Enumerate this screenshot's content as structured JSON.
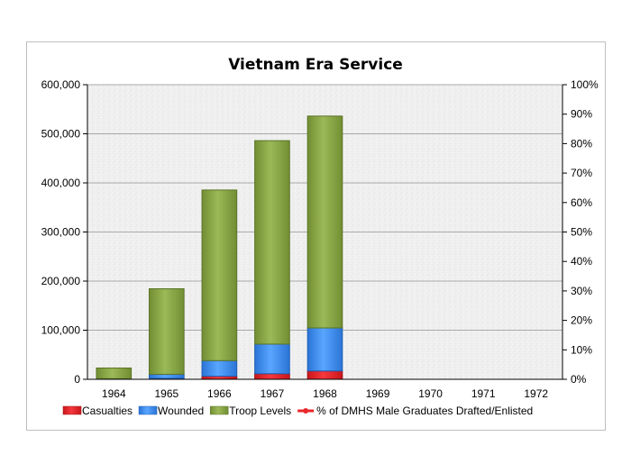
{
  "chart_data": {
    "type": "bar",
    "stacked": true,
    "title": "Vietnam Era Service",
    "categories": [
      "1964",
      "1965",
      "1966",
      "1967",
      "1968",
      "1969",
      "1970",
      "1971",
      "1972"
    ],
    "series": [
      {
        "name": "Casualties",
        "color": "#e8262b",
        "values": [
          200,
          1900,
          6300,
          11400,
          17000,
          null,
          null,
          null,
          null
        ]
      },
      {
        "name": "Wounded",
        "color": "#3d8ef0",
        "values": [
          1000,
          8300,
          31700,
          60300,
          87600,
          null,
          null,
          null,
          null
        ]
      },
      {
        "name": "Troop Levels",
        "color": "#8aa745",
        "values": [
          21800,
          174200,
          347500,
          414300,
          431500,
          null,
          null,
          null,
          null
        ]
      },
      {
        "name": "% of DMHS Male Graduates Drafted/Enlisted",
        "color": "#e8262b",
        "axis": "right",
        "type": "line",
        "values": [
          null,
          null,
          null,
          null,
          null,
          null,
          null,
          null,
          null
        ]
      }
    ],
    "y_left": {
      "min": 0,
      "max": 600000,
      "ticks": [
        "0",
        "100,000",
        "200,000",
        "300,000",
        "400,000",
        "500,000",
        "600,000"
      ]
    },
    "y_right": {
      "min": 0,
      "max": 100,
      "ticks": [
        "0%",
        "10%",
        "20%",
        "30%",
        "40%",
        "50%",
        "60%",
        "70%",
        "80%",
        "90%",
        "100%"
      ]
    },
    "grid": true,
    "legend_position": "bottom"
  }
}
